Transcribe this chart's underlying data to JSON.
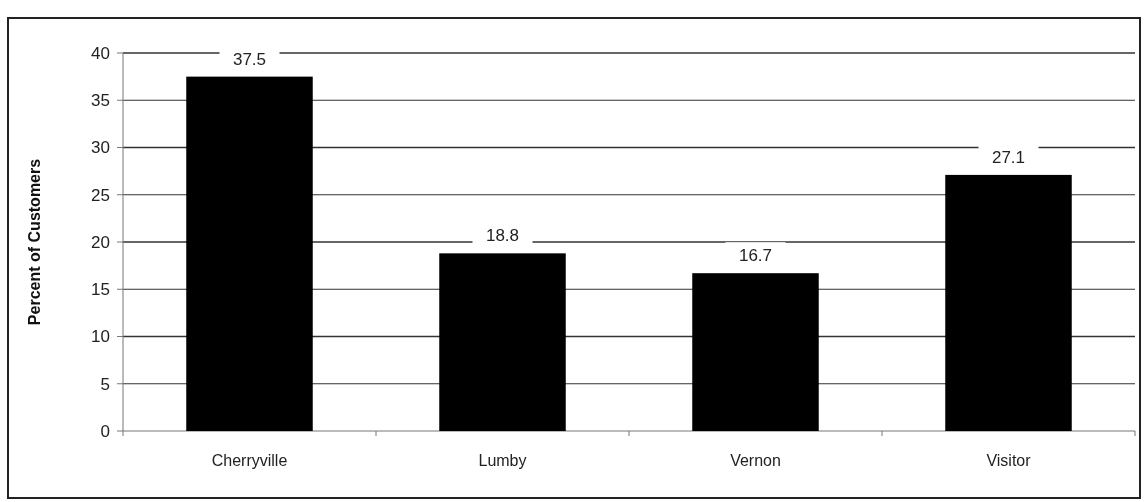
{
  "chart_data": {
    "type": "bar",
    "ylabel": "Percent of Customers",
    "categories": [
      "Cherryville",
      "Lumby",
      "Vernon",
      "Visitor"
    ],
    "values": [
      37.5,
      18.8,
      16.7,
      27.1
    ],
    "color": "#000000",
    "ylim": [
      0,
      40
    ],
    "yticks": [
      0,
      5,
      10,
      15,
      20,
      25,
      30,
      35,
      40
    ],
    "grid": "y",
    "data_labels": true
  }
}
